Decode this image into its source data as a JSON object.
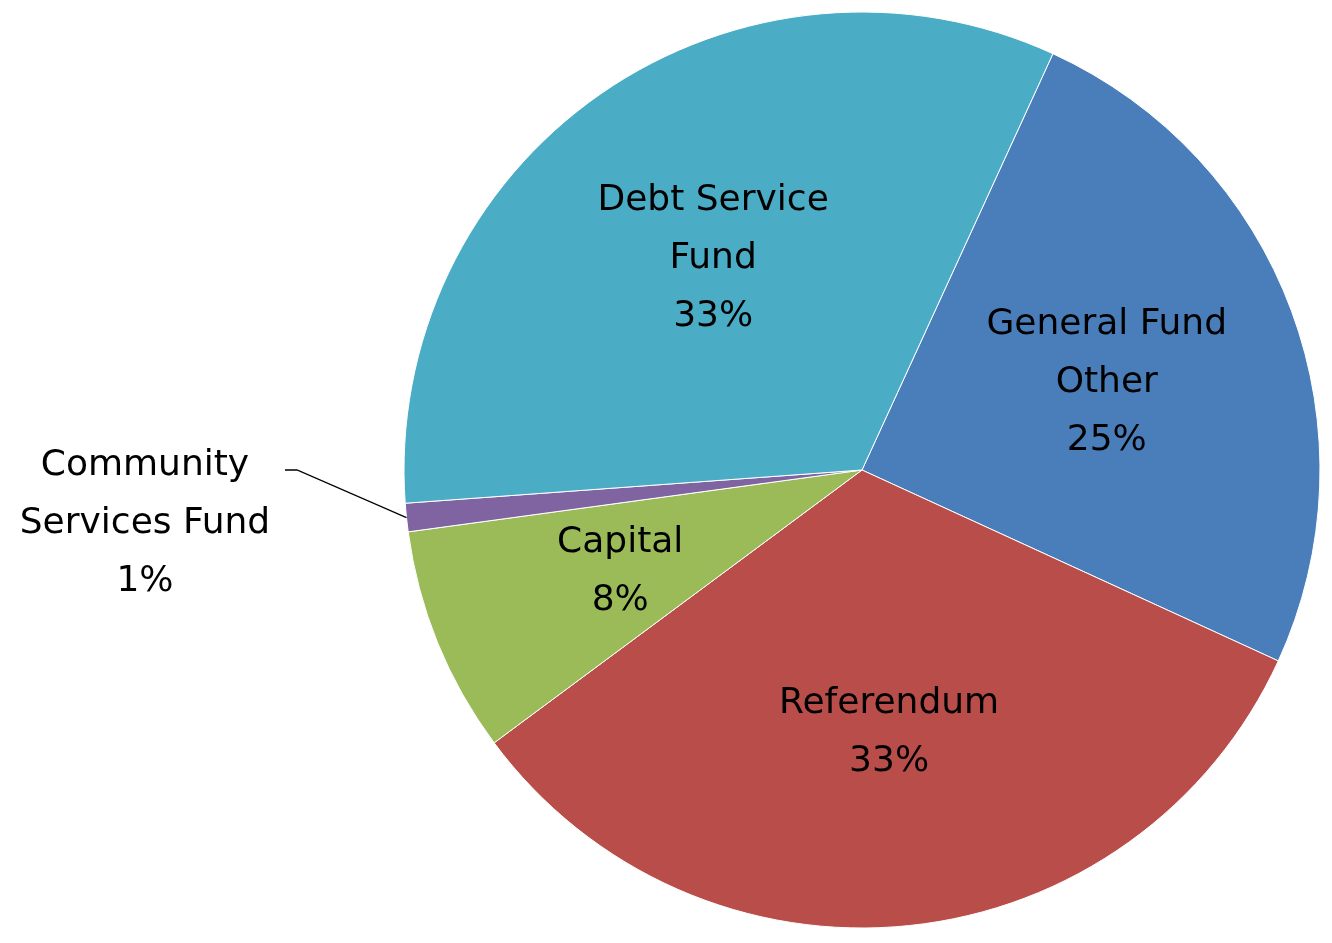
{
  "chart_data": {
    "type": "pie",
    "categories": [
      "General Fund Other",
      "Referendum",
      "Capital",
      "Community Services Fund",
      "Debt Service Fund"
    ],
    "values": [
      25,
      33,
      8,
      1,
      33
    ],
    "colors": [
      "#4a7ebb",
      "#b94d4a",
      "#9bbb59",
      "#8064a2",
      "#4bacc6"
    ],
    "value_labels": [
      "25%",
      "33%",
      "8%",
      "1%",
      "33%"
    ]
  }
}
